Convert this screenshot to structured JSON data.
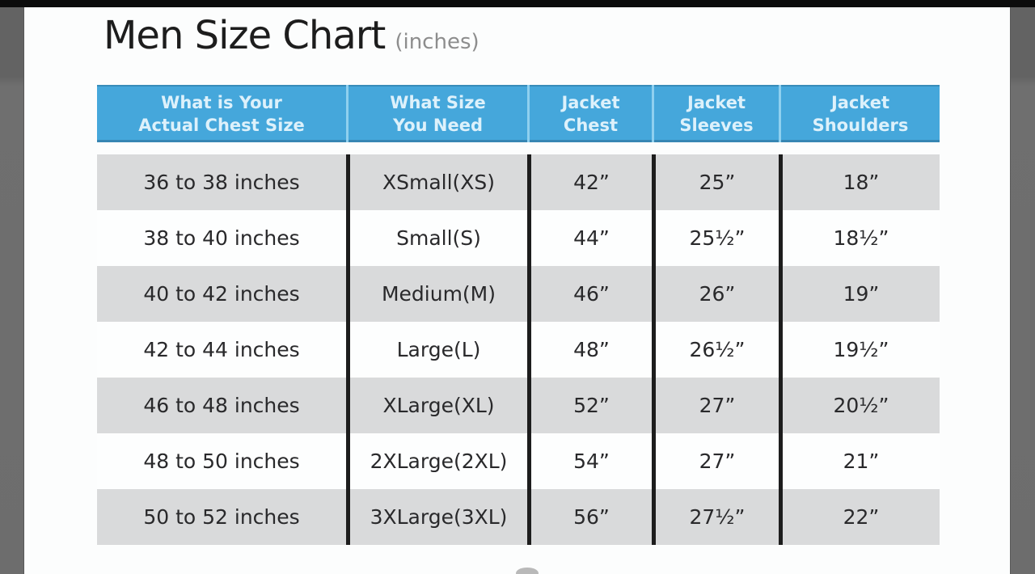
{
  "title": {
    "text": "Men Size Chart",
    "suffix": "(inches)"
  },
  "table": {
    "headers": [
      {
        "line1": "What is Your",
        "line2": "Actual Chest Size"
      },
      {
        "line1": "What Size",
        "line2": "You Need"
      },
      {
        "line1": "Jacket",
        "line2": "Chest"
      },
      {
        "line1": "Jacket",
        "line2": "Sleeves"
      },
      {
        "line1": "Jacket",
        "line2": "Shoulders"
      }
    ],
    "rows": [
      [
        "36 to 38 inches",
        "XSmall(XS)",
        "42”",
        "25”",
        "18”"
      ],
      [
        "38 to 40 inches",
        "Small(S)",
        "44”",
        "25½”",
        "18½”"
      ],
      [
        "40 to 42 inches",
        "Medium(M)",
        "46”",
        "26”",
        "19”"
      ],
      [
        "42 to 44 inches",
        "Large(L)",
        "48”",
        "26½”",
        "19½”"
      ],
      [
        "46 to 48 inches",
        "XLarge(XL)",
        "52”",
        "27”",
        "20½”"
      ],
      [
        "48 to 50 inches",
        "2XLarge(2XL)",
        "54”",
        "27”",
        "21”"
      ],
      [
        "50 to 52 inches",
        "3XLarge(3XL)",
        "56”",
        "27½”",
        "22”"
      ]
    ]
  },
  "colors": {
    "header_blue": "#45a7db",
    "header_separator": "#8fd0ef",
    "row_gray": "#d9dadb",
    "row_white": "#fdfefe",
    "column_line_black": "#1d1d1d",
    "frame_gray": "#6b6b6b",
    "top_bar_black": "#0c0c0c",
    "title_text": "#1d1d1d",
    "subtitle_text": "#8d8d8d"
  }
}
